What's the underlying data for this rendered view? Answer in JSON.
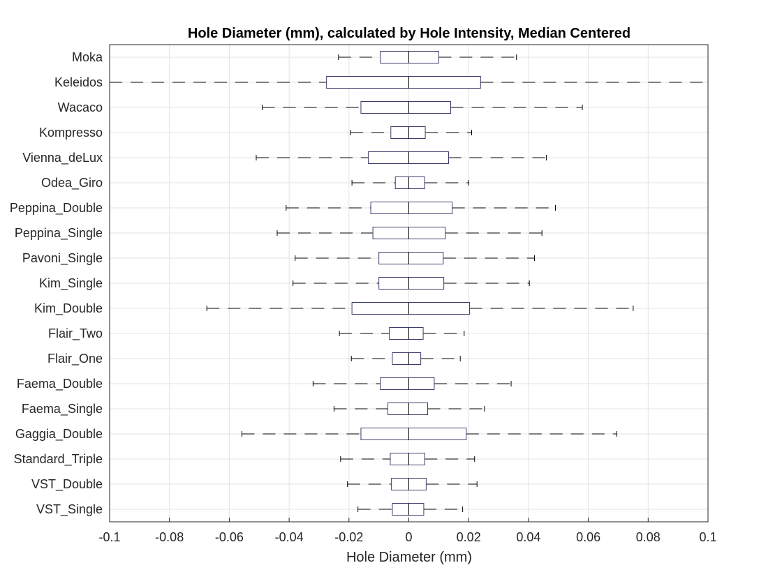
{
  "chart_data": {
    "type": "boxplot",
    "orientation": "horizontal",
    "title": "Hole Diameter (mm), calculated by Hole Intensity, Median Centered",
    "xlabel": "Hole Diameter (mm)",
    "ylabel": "",
    "xlim": [
      -0.1,
      0.1
    ],
    "xticks": [
      -0.1,
      -0.08,
      -0.06,
      -0.04,
      -0.02,
      0,
      0.02,
      0.04,
      0.06,
      0.08,
      0.1
    ],
    "xtick_labels": [
      "-0.1",
      "-0.08",
      "-0.06",
      "-0.04",
      "-0.02",
      "0",
      "0.02",
      "0.04",
      "0.06",
      "0.08",
      "0.1"
    ],
    "grid": true,
    "categories": [
      "Moka",
      "Keleidos",
      "Wacaco",
      "Kompresso",
      "Vienna_deLux",
      "Odea_Giro",
      "Peppina_Double",
      "Peppina_Single",
      "Pavoni_Single",
      "Kim_Single",
      "Kim_Double",
      "Flair_Two",
      "Flair_One",
      "Faema_Double",
      "Faema_Single",
      "Gaggia_Double",
      "Standard_Triple",
      "VST_Double",
      "VST_Single"
    ],
    "boxes": [
      {
        "label": "Moka",
        "whisker_low": -0.0235,
        "q1": -0.0095,
        "median": 0,
        "q3": 0.01,
        "whisker_high": 0.036
      },
      {
        "label": "Keleidos",
        "whisker_low": -0.1,
        "q1": -0.0275,
        "median": 0,
        "q3": 0.024,
        "whisker_high": 0.1
      },
      {
        "label": "Wacaco",
        "whisker_low": -0.049,
        "q1": -0.016,
        "median": 0,
        "q3": 0.014,
        "whisker_high": 0.058
      },
      {
        "label": "Kompresso",
        "whisker_low": -0.0195,
        "q1": -0.006,
        "median": 0,
        "q3": 0.0055,
        "whisker_high": 0.021
      },
      {
        "label": "Vienna_deLux",
        "whisker_low": -0.051,
        "q1": -0.0135,
        "median": 0,
        "q3": 0.0133,
        "whisker_high": 0.046
      },
      {
        "label": "Odea_Giro",
        "whisker_low": -0.019,
        "q1": -0.0045,
        "median": 0,
        "q3": 0.0053,
        "whisker_high": 0.02
      },
      {
        "label": "Peppina_Double",
        "whisker_low": -0.041,
        "q1": -0.0127,
        "median": 0,
        "q3": 0.0145,
        "whisker_high": 0.049
      },
      {
        "label": "Peppina_Single",
        "whisker_low": -0.044,
        "q1": -0.012,
        "median": 0,
        "q3": 0.0122,
        "whisker_high": 0.0445
      },
      {
        "label": "Pavoni_Single",
        "whisker_low": -0.038,
        "q1": -0.01,
        "median": 0,
        "q3": 0.0115,
        "whisker_high": 0.042
      },
      {
        "label": "Kim_Single",
        "whisker_low": -0.0387,
        "q1": -0.01,
        "median": 0,
        "q3": 0.0117,
        "whisker_high": 0.0403
      },
      {
        "label": "Kim_Double",
        "whisker_low": -0.0675,
        "q1": -0.019,
        "median": 0,
        "q3": 0.0203,
        "whisker_high": 0.075
      },
      {
        "label": "Flair_Two",
        "whisker_low": -0.0232,
        "q1": -0.0065,
        "median": 0,
        "q3": 0.0048,
        "whisker_high": 0.0185
      },
      {
        "label": "Flair_One",
        "whisker_low": -0.0192,
        "q1": -0.0055,
        "median": 0,
        "q3": 0.004,
        "whisker_high": 0.0172
      },
      {
        "label": "Faema_Double",
        "whisker_low": -0.032,
        "q1": -0.0095,
        "median": 0,
        "q3": 0.0085,
        "whisker_high": 0.0342
      },
      {
        "label": "Faema_Single",
        "whisker_low": -0.025,
        "q1": -0.007,
        "median": 0,
        "q3": 0.0063,
        "whisker_high": 0.0253
      },
      {
        "label": "Gaggia_Double",
        "whisker_low": -0.0558,
        "q1": -0.016,
        "median": 0,
        "q3": 0.0192,
        "whisker_high": 0.0695
      },
      {
        "label": "Standard_Triple",
        "whisker_low": -0.0228,
        "q1": -0.0062,
        "median": 0,
        "q3": 0.0053,
        "whisker_high": 0.022
      },
      {
        "label": "VST_Double",
        "whisker_low": -0.0205,
        "q1": -0.0058,
        "median": 0,
        "q3": 0.0058,
        "whisker_high": 0.0228
      },
      {
        "label": "VST_Single",
        "whisker_low": -0.017,
        "q1": -0.0055,
        "median": 0,
        "q3": 0.005,
        "whisker_high": 0.018
      }
    ],
    "colors": {
      "box": "#3b3d6b",
      "whisker": "#000000",
      "median": "#000000",
      "grid": "#e3e3e3",
      "axis": "#262626"
    }
  }
}
